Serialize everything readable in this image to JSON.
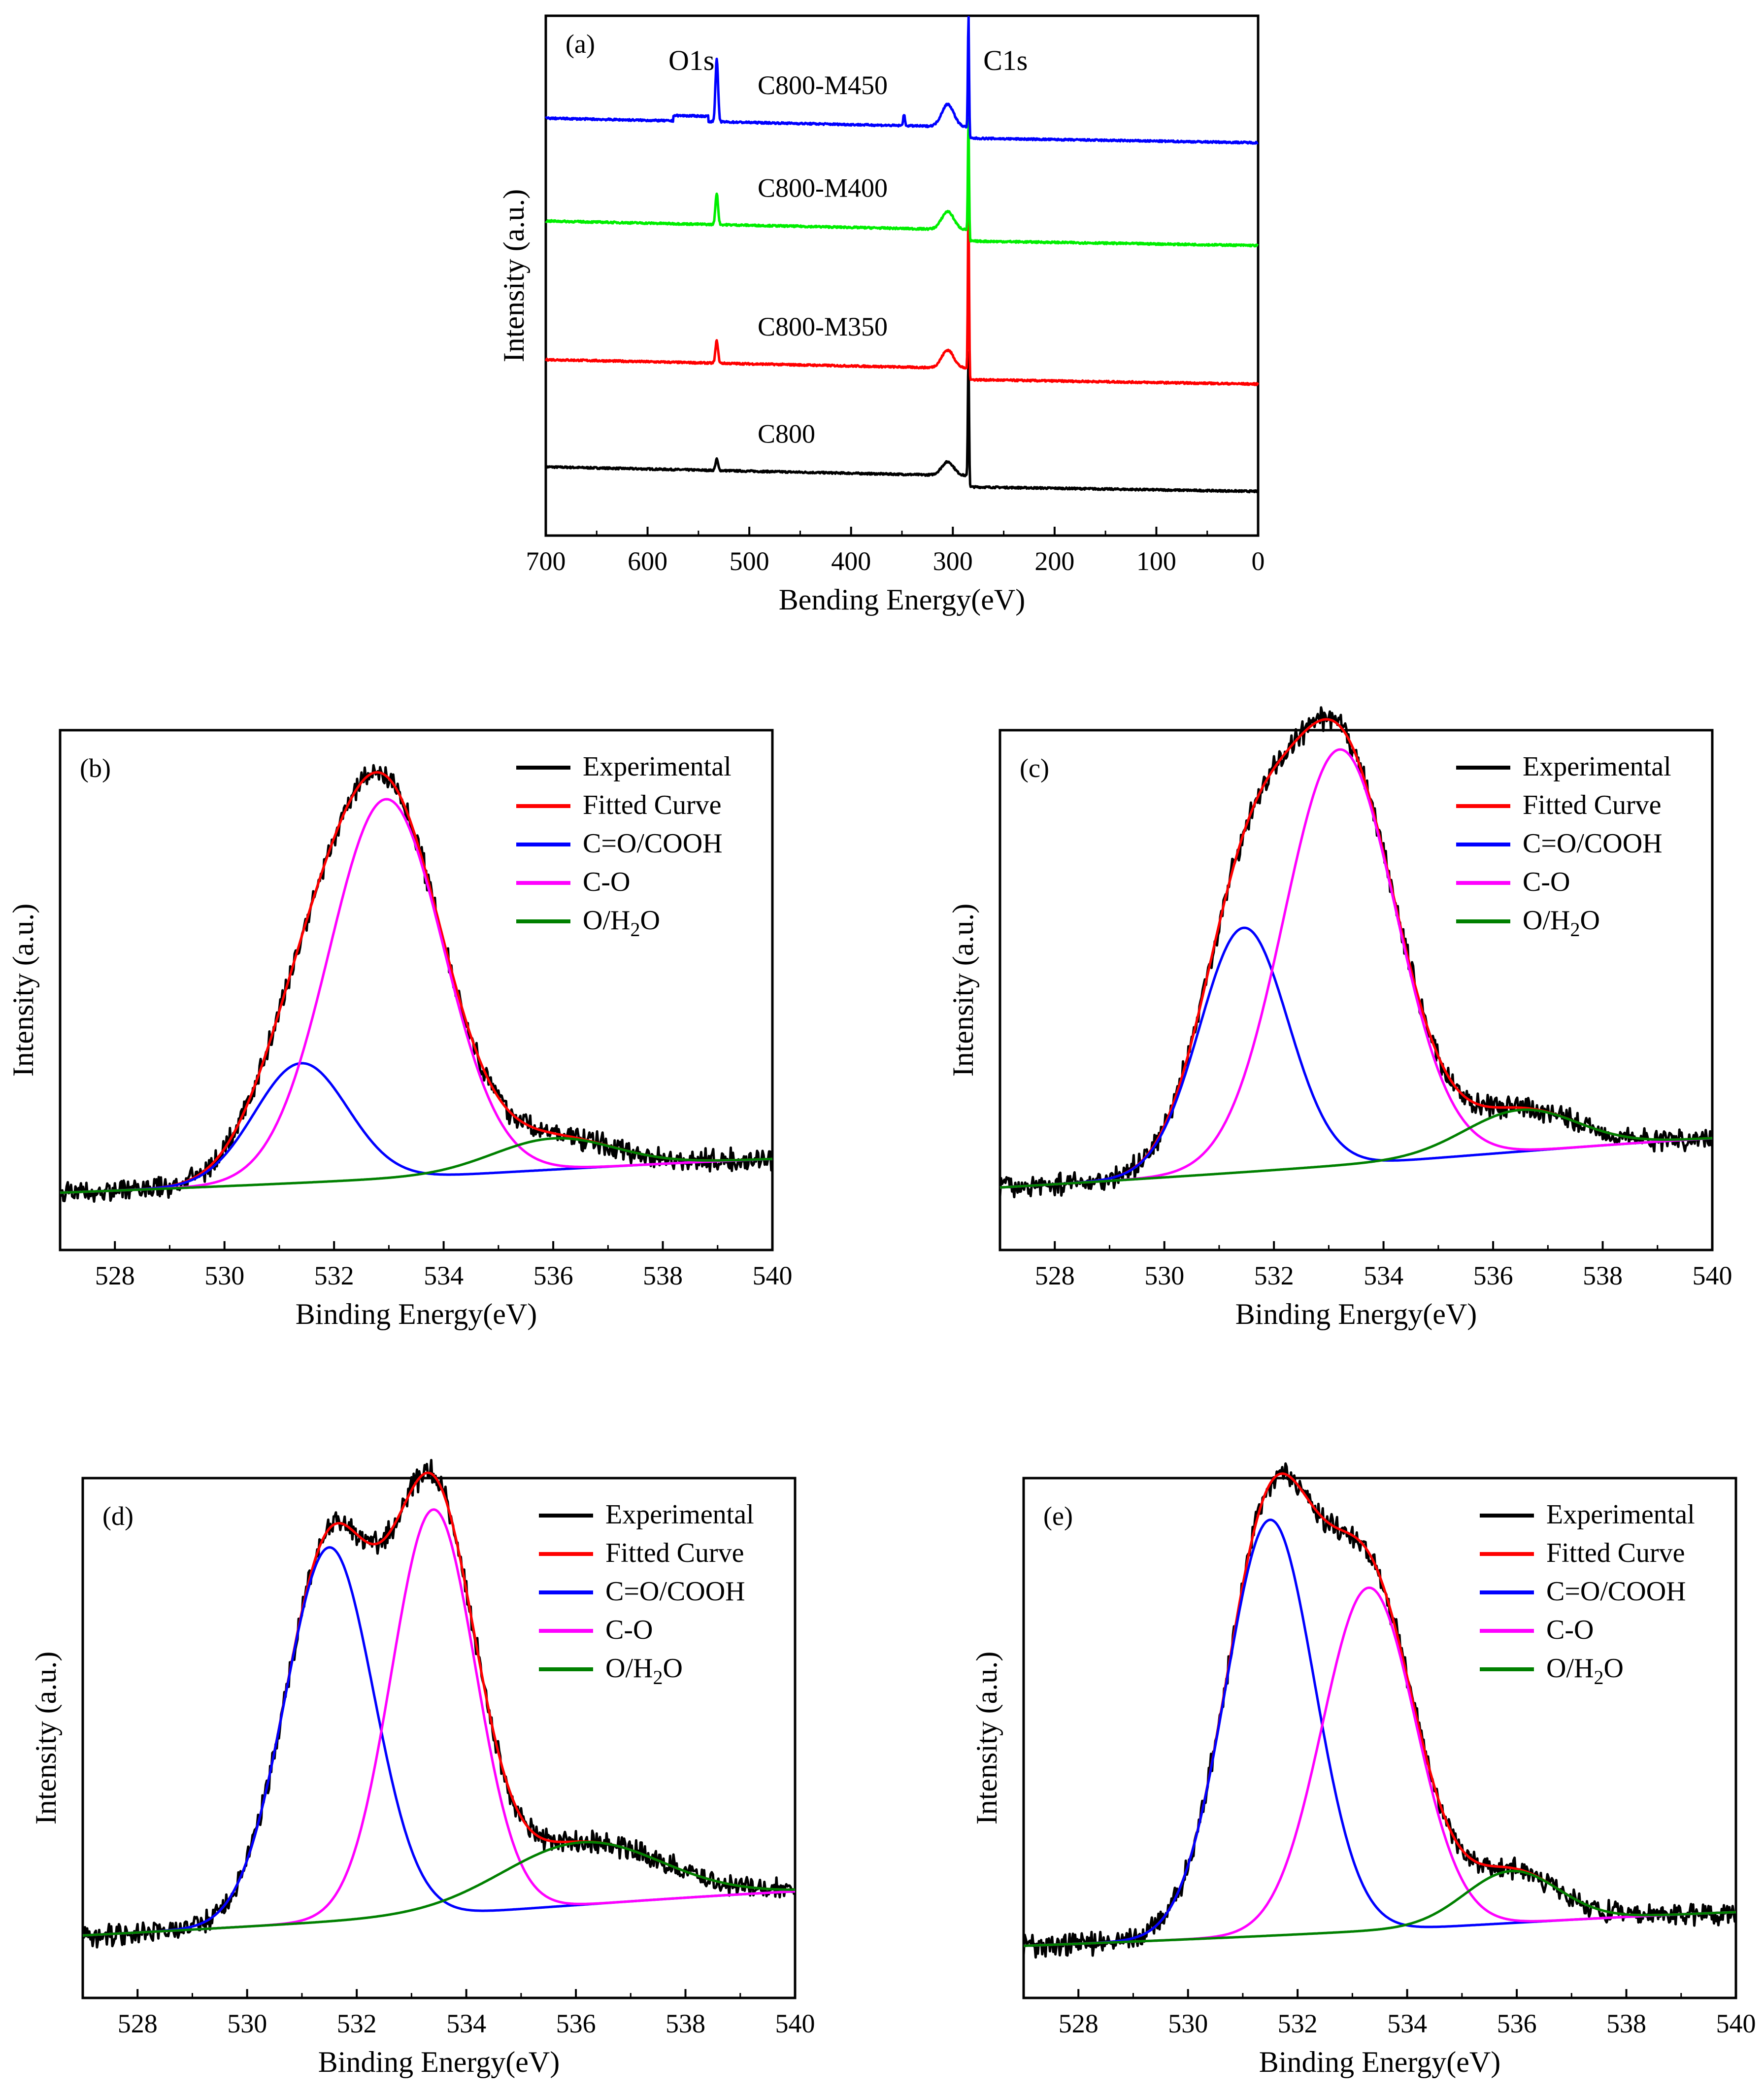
{
  "figure": {
    "panels": [
      "a",
      "b",
      "c",
      "d",
      "e"
    ]
  },
  "chart_data": [
    {
      "id": "a",
      "type": "line",
      "panel_label": "(a)",
      "title": "",
      "xlabel": "Bending Energy(eV)",
      "ylabel": "Intensity (a.u.)",
      "xlim": [
        700,
        0
      ],
      "x_reversed": true,
      "xticks": [
        700,
        600,
        500,
        400,
        300,
        200,
        100,
        0
      ],
      "yticks_shown": false,
      "legend": "none",
      "annotations": [
        "O1s",
        "C1s"
      ],
      "series": [
        {
          "name": "C800",
          "color": "#000000",
          "offset": 0.0,
          "peaks": [
            {
              "x": 532,
              "height": 0.025,
              "width": 3
            },
            {
              "x": 284.6,
              "height": 0.28,
              "width": 1.4
            }
          ],
          "shoulder": {
            "x": 305,
            "height": 0.03
          }
        },
        {
          "name": "C800-M350",
          "color": "#ff0000",
          "offset": 0.24,
          "peaks": [
            {
              "x": 532,
              "height": 0.05,
              "width": 3
            },
            {
              "x": 284.6,
              "height": 0.38,
              "width": 1.4
            }
          ],
          "shoulder": {
            "x": 305,
            "height": 0.04
          }
        },
        {
          "name": "C800-M400",
          "color": "#00ee00",
          "offset": 0.55,
          "peaks": [
            {
              "x": 532,
              "height": 0.07,
              "width": 3
            },
            {
              "x": 284.6,
              "height": 0.25,
              "width": 1.4
            }
          ],
          "shoulder": {
            "x": 305,
            "height": 0.04
          }
        },
        {
          "name": "C800-M450",
          "color": "#0000ff",
          "offset": 0.78,
          "peaks": [
            {
              "x": 532,
              "height": 0.14,
              "width": 3
            },
            {
              "x": 284.6,
              "height": 0.25,
              "width": 1.4
            },
            {
              "x": 348,
              "height": 0.025,
              "width": 2
            }
          ],
          "shoulder": {
            "x": 305,
            "height": 0.05
          }
        }
      ]
    },
    {
      "id": "b",
      "type": "line",
      "panel_label": "(b)",
      "xlabel": "Binding Energy(eV)",
      "ylabel": "Intensity (a.u.)",
      "xlim": [
        527,
        540
      ],
      "xticks": [
        528,
        530,
        532,
        534,
        536,
        538,
        540
      ],
      "yticks_shown": false,
      "legend": "top-right",
      "baseline": {
        "start": 0.05,
        "end": 0.1
      },
      "series": [
        {
          "name": "Experimental",
          "color": "#000000",
          "role": "experimental"
        },
        {
          "name": "Fitted Curve",
          "color": "#ff0000",
          "role": "fit"
        },
        {
          "name": "C=O/COOH",
          "color": "#0000ff",
          "role": "component",
          "center": 531.4,
          "height": 0.23,
          "fwhm": 2.0
        },
        {
          "name": "C-O",
          "color": "#ff00ff",
          "role": "component",
          "center": 532.95,
          "height": 0.73,
          "fwhm": 2.45
        },
        {
          "name": "O/H2O",
          "color": "#008000",
          "role": "component",
          "center": 536.0,
          "height": 0.06,
          "fwhm": 2.6
        }
      ]
    },
    {
      "id": "c",
      "type": "line",
      "panel_label": "(c)",
      "xlabel": "Binding Energy(eV)",
      "ylabel": "Intensity (a.u.)",
      "xlim": [
        527,
        540
      ],
      "xticks": [
        528,
        530,
        532,
        534,
        536,
        538,
        540
      ],
      "yticks_shown": false,
      "legend": "top-right",
      "baseline": {
        "start": 0.06,
        "end": 0.14
      },
      "series": [
        {
          "name": "Experimental",
          "color": "#000000",
          "role": "experimental"
        },
        {
          "name": "Fitted Curve",
          "color": "#ff0000",
          "role": "fit"
        },
        {
          "name": "C=O/COOH",
          "color": "#0000ff",
          "role": "component",
          "center": 531.45,
          "height": 0.47,
          "fwhm": 1.9
        },
        {
          "name": "C-O",
          "color": "#ff00ff",
          "role": "component",
          "center": 533.2,
          "height": 0.8,
          "fwhm": 2.4
        },
        {
          "name": "O/H2O",
          "color": "#008000",
          "role": "component",
          "center": 536.5,
          "height": 0.08,
          "fwhm": 2.4
        }
      ]
    },
    {
      "id": "d",
      "type": "line",
      "panel_label": "(d)",
      "xlabel": "Binding Energy(eV)",
      "ylabel": "Intensity (a.u.)",
      "xlim": [
        527,
        540
      ],
      "xticks": [
        528,
        530,
        532,
        534,
        536,
        538,
        540
      ],
      "yticks_shown": false,
      "legend": "top-right",
      "baseline": {
        "start": 0.06,
        "end": 0.13
      },
      "series": [
        {
          "name": "Experimental",
          "color": "#000000",
          "role": "experimental"
        },
        {
          "name": "Fitted Curve",
          "color": "#ff0000",
          "role": "fit"
        },
        {
          "name": "C=O/COOH",
          "color": "#0000ff",
          "role": "component",
          "center": 531.5,
          "height": 0.72,
          "fwhm": 1.9
        },
        {
          "name": "C-O",
          "color": "#ff00ff",
          "role": "component",
          "center": 533.4,
          "height": 0.78,
          "fwhm": 1.8
        },
        {
          "name": "O/H2O",
          "color": "#008000",
          "role": "component",
          "center": 536.1,
          "height": 0.12,
          "fwhm": 3.4
        }
      ]
    },
    {
      "id": "e",
      "type": "line",
      "panel_label": "(e)",
      "xlabel": "Binding Energy(eV)",
      "ylabel": "Intensity (a.u.)",
      "xlim": [
        527,
        540
      ],
      "xticks": [
        528,
        530,
        532,
        534,
        536,
        538,
        540
      ],
      "yticks_shown": false,
      "legend": "top-right",
      "baseline": {
        "start": 0.04,
        "end": 0.09
      },
      "series": [
        {
          "name": "Experimental",
          "color": "#000000",
          "role": "experimental"
        },
        {
          "name": "Fitted Curve",
          "color": "#ff0000",
          "role": "fit"
        },
        {
          "name": "C=O/COOH",
          "color": "#0000ff",
          "role": "component",
          "center": 531.5,
          "height": 0.8,
          "fwhm": 1.9
        },
        {
          "name": "C-O",
          "color": "#ff00ff",
          "role": "component",
          "center": 533.3,
          "height": 0.66,
          "fwhm": 2.0
        },
        {
          "name": "O/H2O",
          "color": "#008000",
          "role": "component",
          "center": 535.9,
          "height": 0.1,
          "fwhm": 2.0
        }
      ]
    }
  ]
}
